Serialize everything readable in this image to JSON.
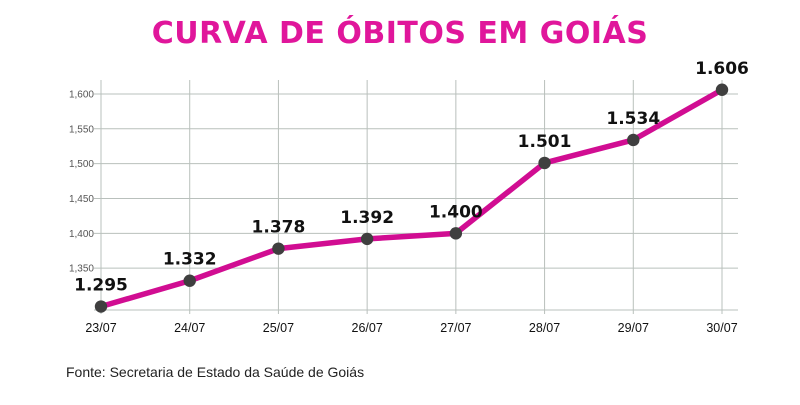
{
  "chart_data": {
    "type": "line",
    "title": "CURVA DE ÓBITOS EM GOIÁS",
    "source": "Fonte: Secretaria de Estado da Saúde de Goiás",
    "categories": [
      "23/07",
      "24/07",
      "25/07",
      "26/07",
      "27/07",
      "28/07",
      "29/07",
      "30/07"
    ],
    "values": [
      1295,
      1332,
      1378,
      1392,
      1400,
      1501,
      1534,
      1606
    ],
    "value_labels": [
      "1.295",
      "1.332",
      "1.378",
      "1.392",
      "1.400",
      "1.501",
      "1.534",
      "1.606"
    ],
    "yticks": [
      1350,
      1400,
      1450,
      1500,
      1550,
      1600
    ],
    "ytick_labels": [
      "1,350",
      "1,400",
      "1,450",
      "1,500",
      "1,550",
      "1,600"
    ],
    "ylim": [
      1290,
      1620
    ],
    "grid": true,
    "line_color": "#d10d92",
    "marker_color": "#3f3f3f",
    "grid_color": "#b9c0bc",
    "title_color": "#e0169b"
  }
}
